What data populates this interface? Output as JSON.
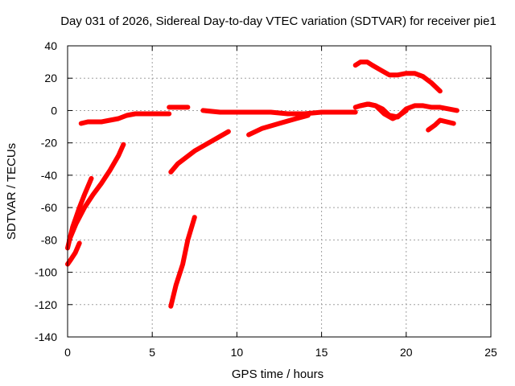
{
  "chart_data": {
    "type": "line",
    "title": "Day 031 of 2026, Sidereal Day-to-day VTEC variation (SDTVAR) for receiver pie1",
    "xlabel": "GPS time / hours",
    "ylabel": "SDTVAR / TECUs",
    "xlim": [
      0,
      25
    ],
    "ylim": [
      -140,
      40
    ],
    "xticks": [
      0,
      5,
      10,
      15,
      20,
      25
    ],
    "yticks": [
      -140,
      -120,
      -100,
      -80,
      -60,
      -40,
      -20,
      0,
      20,
      40
    ],
    "grid": true,
    "color": "#ff0000",
    "series": [
      {
        "x": [
          0.0,
          0.3,
          0.7,
          1.0,
          1.4
        ],
        "y": [
          -85,
          -72,
          -60,
          -52,
          -42
        ]
      },
      {
        "x": [
          0.0,
          0.2,
          0.45,
          0.7
        ],
        "y": [
          -95,
          -92,
          -88,
          -82
        ]
      },
      {
        "x": [
          0.1,
          0.5,
          1.0,
          1.5,
          2.0,
          2.5,
          3.0,
          3.3
        ],
        "y": [
          -80,
          -70,
          -60,
          -52,
          -45,
          -37,
          -28,
          -21
        ]
      },
      {
        "x": [
          0.8,
          1.2,
          1.6,
          2.0,
          2.5,
          3.0,
          3.5,
          4.0,
          4.5,
          5.0,
          5.5,
          6.0
        ],
        "y": [
          -8,
          -7,
          -7,
          -7,
          -6,
          -5,
          -3,
          -2,
          -2,
          -2,
          -2,
          -2
        ]
      },
      {
        "x": [
          6.0,
          6.4,
          6.8,
          7.1
        ],
        "y": [
          2,
          2,
          2,
          2
        ]
      },
      {
        "x": [
          6.1,
          6.5,
          7.0,
          7.5,
          8.0,
          8.5,
          9.0,
          9.5
        ],
        "y": [
          -38,
          -33,
          -29,
          -25,
          -22,
          -19,
          -16,
          -13
        ]
      },
      {
        "x": [
          6.1,
          6.4,
          6.8,
          7.1,
          7.5
        ],
        "y": [
          -121,
          -108,
          -95,
          -80,
          -66
        ]
      },
      {
        "x": [
          8.0,
          9.0,
          10.0,
          11.0,
          12.0,
          13.0,
          14.0,
          15.0,
          16.0,
          17.0
        ],
        "y": [
          0,
          -1,
          -1,
          -1,
          -1,
          -2,
          -2,
          -1,
          -1,
          -1
        ]
      },
      {
        "x": [
          10.7,
          11.5,
          12.5,
          13.5,
          14.2
        ],
        "y": [
          -15,
          -11,
          -8,
          -5,
          -3
        ]
      },
      {
        "x": [
          17.0,
          17.3,
          17.7,
          18.0,
          18.5,
          19.0,
          19.5,
          20.0,
          20.5,
          21.0,
          21.5,
          22.0
        ],
        "y": [
          28,
          30,
          30,
          28,
          25,
          22,
          22,
          23,
          23,
          21,
          17,
          12
        ]
      },
      {
        "x": [
          17.0,
          17.3,
          17.8,
          18.2,
          18.6,
          19.0,
          19.5,
          20.0,
          20.5,
          21.0,
          21.5,
          22.0,
          22.5,
          23.0
        ],
        "y": [
          2,
          3,
          4,
          3,
          1,
          -3,
          -4,
          1,
          3,
          3,
          2,
          2,
          1,
          0
        ]
      },
      {
        "x": [
          17.3,
          17.7,
          18.2,
          18.7,
          19.2,
          19.6,
          20.0
        ],
        "y": [
          3,
          4,
          3,
          -2,
          -5,
          -3,
          0
        ]
      },
      {
        "x": [
          21.3,
          21.7,
          22.0,
          22.4,
          22.8
        ],
        "y": [
          -12,
          -9,
          -6,
          -7,
          -8
        ]
      }
    ]
  }
}
